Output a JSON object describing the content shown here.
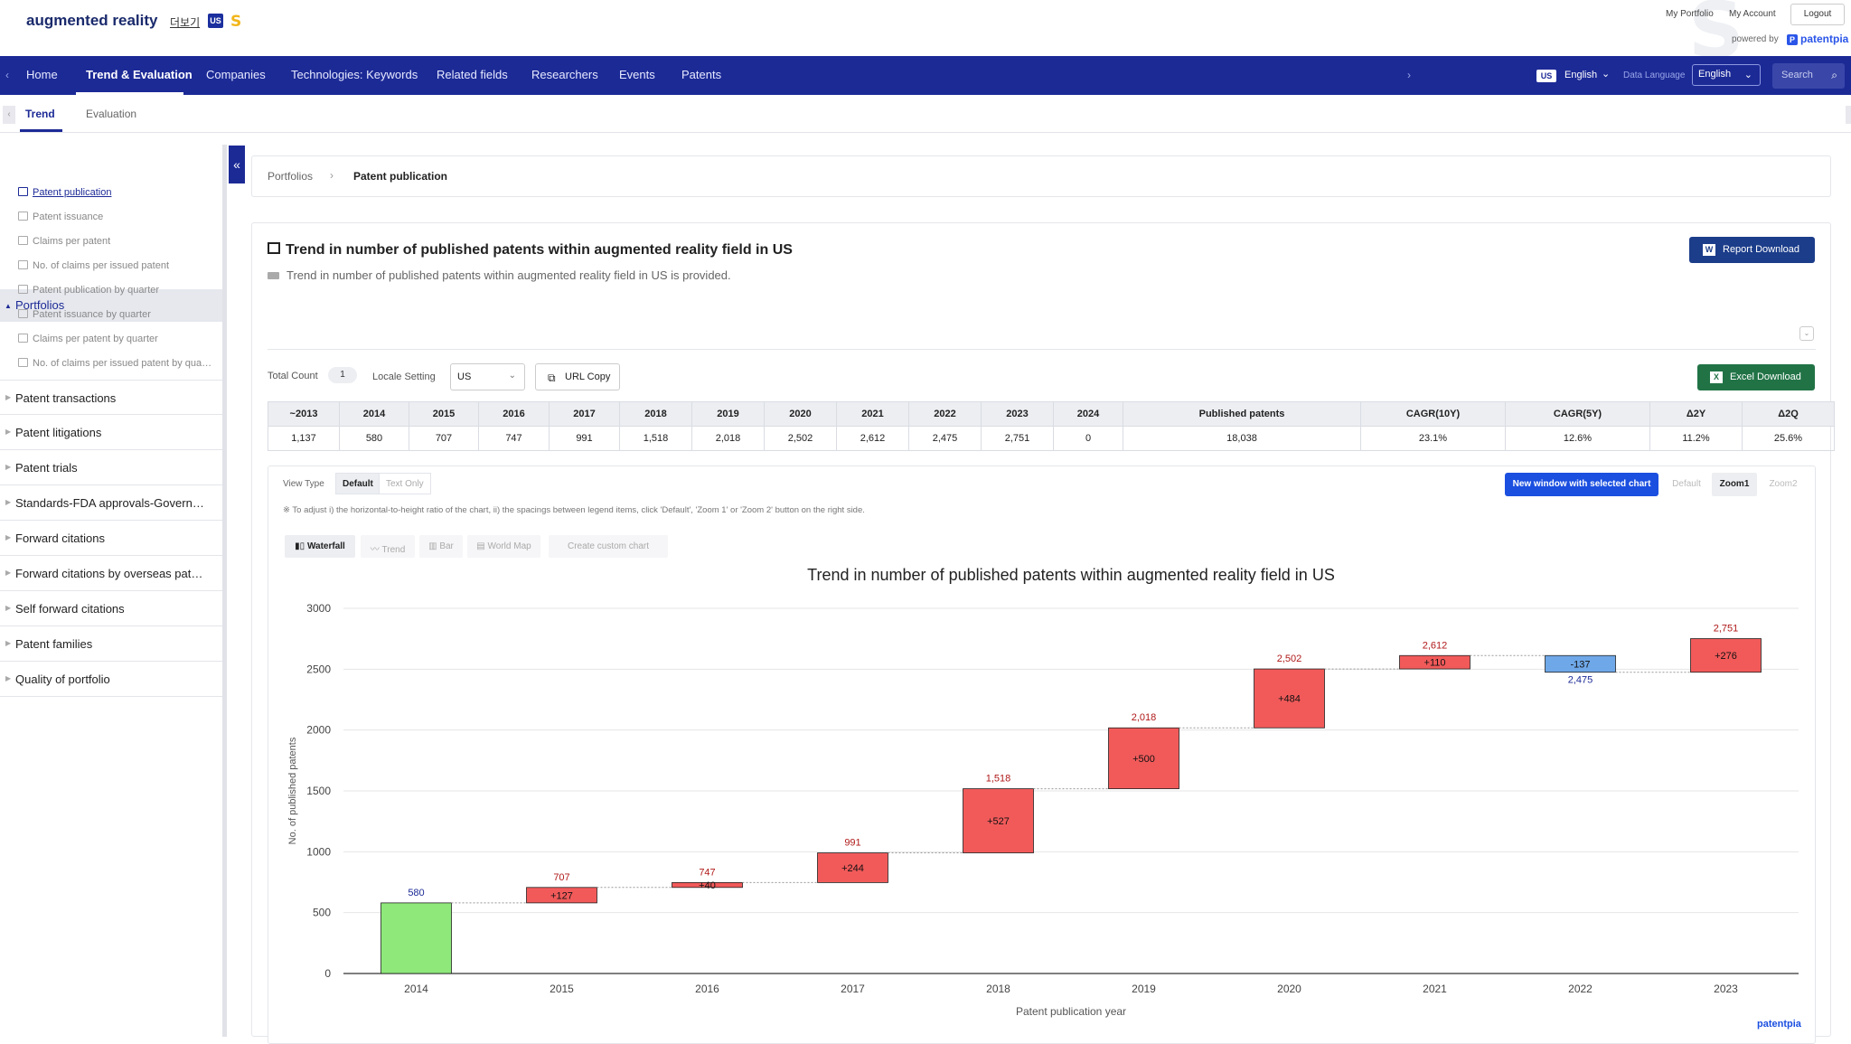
{
  "header": {
    "title": "augmented reality",
    "more_link": "더보기",
    "country_badge": "US",
    "s_mark": "S",
    "links": {
      "my_portfolio": "My Portfolio",
      "my_account": "My Account",
      "logout": "Logout"
    },
    "powered_by": "powered by",
    "brand": "patentpia"
  },
  "nav": {
    "items": [
      "Home",
      "Trend & Evaluation",
      "Companies",
      "Technologies: Keywords",
      "Related fields",
      "Researchers",
      "Events",
      "Patents"
    ],
    "active": "Trend & Evaluation",
    "country": "US",
    "language": "English",
    "data_language_label": "Data Language",
    "data_language_value": "English",
    "search_placeholder": "Search"
  },
  "subtabs": {
    "items": [
      "Trend",
      "Evaluation"
    ],
    "active": "Trend"
  },
  "sidebar": {
    "portfolios_label": "Portfolios",
    "portfolio_items": [
      "Patent publication",
      "Patent issuance",
      "Claims per patent",
      "No. of claims per issued patent",
      "Patent publication by quarter",
      "Patent issuance by quarter",
      "Claims per patent by quarter",
      "No. of claims per issued patent by qua…"
    ],
    "active_item": "Patent publication",
    "sections": [
      "Patent transactions",
      "Patent litigations",
      "Patent trials",
      "Standards-FDA approvals-Govern…",
      "Forward citations",
      "Forward citations by overseas pat…",
      "Self forward citations",
      "Patent families",
      "Quality of portfolio"
    ]
  },
  "breadcrumb": {
    "parent": "Portfolios",
    "current": "Patent publication"
  },
  "panel": {
    "title": "Trend in number of published patents within augmented reality field in US",
    "description": "Trend in number of published patents within augmented reality field in US is provided.",
    "report_button": "Report Download",
    "excel_button": "Excel Download",
    "total_count_label": "Total Count",
    "total_count": "1",
    "locale_label": "Locale Setting",
    "locale_value": "US",
    "url_copy": "URL Copy"
  },
  "stats_table": {
    "headers": [
      "~2013",
      "2014",
      "2015",
      "2016",
      "2017",
      "2018",
      "2019",
      "2020",
      "2021",
      "2022",
      "2023",
      "2024",
      "Published patents",
      "CAGR(10Y)",
      "CAGR(5Y)",
      "Δ2Y",
      "Δ2Q"
    ],
    "values": [
      "1,137",
      "580",
      "707",
      "747",
      "991",
      "1,518",
      "2,018",
      "2,502",
      "2,612",
      "2,475",
      "2,751",
      "0",
      "18,038",
      "23.1%",
      "12.6%",
      "11.2%",
      "25.6%"
    ]
  },
  "controls": {
    "view_type_label": "View Type",
    "view_types": [
      "Default",
      "Text Only"
    ],
    "view_type_active": "Default",
    "new_window": "New window with selected chart",
    "zoom_options": [
      "Default",
      "Zoom1",
      "Zoom2"
    ],
    "zoom_active": "Zoom1",
    "note": "※ To adjust i) the horizontal-to-height ratio of the chart, ii) the spacings between legend items, click 'Default', 'Zoom 1' or 'Zoom 2' button on the right side.",
    "chart_tabs": [
      "Waterfall",
      "Trend",
      "Bar",
      "World Map",
      "Create custom chart"
    ],
    "chart_tab_active": "Waterfall"
  },
  "chart_data": {
    "type": "bar",
    "subtype": "waterfall",
    "title": "Trend in number of published patents within augmented reality field in US",
    "xlabel": "Patent publication year",
    "ylabel": "No. of published patents",
    "ylim": [
      0,
      3000
    ],
    "yticks": [
      0,
      500,
      1000,
      1500,
      2000,
      2500,
      3000
    ],
    "categories": [
      "2014",
      "2015",
      "2016",
      "2017",
      "2018",
      "2019",
      "2020",
      "2021",
      "2022",
      "2023"
    ],
    "values": [
      580,
      707,
      747,
      991,
      1518,
      2018,
      2502,
      2612,
      2475,
      2751
    ],
    "deltas": [
      580,
      127,
      40,
      244,
      527,
      500,
      484,
      110,
      -137,
      276
    ],
    "total_labels": [
      "580",
      "707",
      "747",
      "991",
      "1,518",
      "2,018",
      "2,502",
      "2,612",
      "2,475",
      "2,751"
    ],
    "delta_labels": [
      "",
      "+127",
      "+40",
      "+244",
      "+527",
      "+500",
      "+484",
      "+110",
      "-137",
      "+276"
    ],
    "colors": {
      "base": "#8ee87a",
      "increase": "#f25a5a",
      "decrease": "#6fa8e8",
      "total_label_up": "#b01818",
      "total_label_base": "#1c2a96"
    },
    "grid": true,
    "credit": "patentpia"
  }
}
